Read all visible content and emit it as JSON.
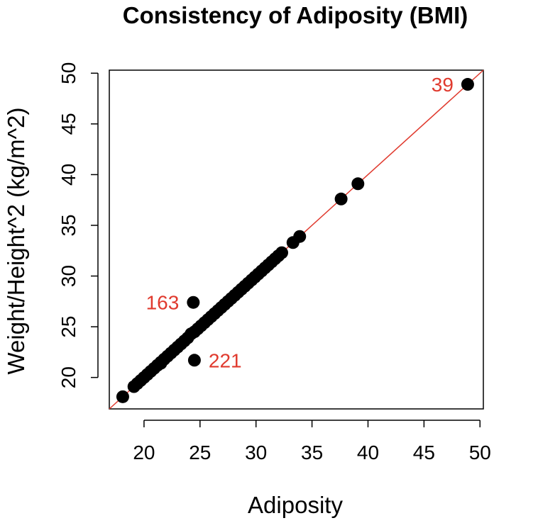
{
  "chart_data": {
    "type": "scatter",
    "title": "Consistency of Adiposity (BMI)",
    "xlabel": "Adiposity",
    "ylabel": "Weight/Height^2 (kg/m^2)",
    "xlim": [
      16.9,
      50.3
    ],
    "ylim": [
      16.9,
      50.3
    ],
    "xticks": [
      20,
      25,
      30,
      35,
      40,
      45,
      50
    ],
    "yticks": [
      20,
      25,
      30,
      35,
      40,
      45,
      50
    ],
    "reference_line": {
      "intercept": 0,
      "slope": 1,
      "color": "#e03a2e"
    },
    "point_color": "#000000",
    "label_color": "#e03a2e",
    "points": [
      [
        18.1,
        18.1
      ],
      [
        19.1,
        19.1
      ],
      [
        19.4,
        19.4
      ],
      [
        19.7,
        19.7
      ],
      [
        20.0,
        20.0
      ],
      [
        20.3,
        20.3
      ],
      [
        20.6,
        20.6
      ],
      [
        20.9,
        20.9
      ],
      [
        21.2,
        21.2
      ],
      [
        21.5,
        21.4
      ],
      [
        21.5,
        21.5
      ],
      [
        21.8,
        21.8
      ],
      [
        22.1,
        22.1
      ],
      [
        22.4,
        22.4
      ],
      [
        22.7,
        22.7
      ],
      [
        23.0,
        23.0
      ],
      [
        23.3,
        23.3
      ],
      [
        23.6,
        23.6
      ],
      [
        23.9,
        23.9
      ],
      [
        24.2,
        24.3
      ],
      [
        24.5,
        24.5
      ],
      [
        24.8,
        24.8
      ],
      [
        25.1,
        25.1
      ],
      [
        25.4,
        25.4
      ],
      [
        25.7,
        25.7
      ],
      [
        26.0,
        26.0
      ],
      [
        26.3,
        26.3
      ],
      [
        26.6,
        26.6
      ],
      [
        26.9,
        26.9
      ],
      [
        27.2,
        27.2
      ],
      [
        27.5,
        27.5
      ],
      [
        27.8,
        27.8
      ],
      [
        28.1,
        28.1
      ],
      [
        28.4,
        28.4
      ],
      [
        28.7,
        28.7
      ],
      [
        29.0,
        29.0
      ],
      [
        29.3,
        29.3
      ],
      [
        29.6,
        29.6
      ],
      [
        29.9,
        29.9
      ],
      [
        30.2,
        30.2
      ],
      [
        30.5,
        30.5
      ],
      [
        30.8,
        30.8
      ],
      [
        31.1,
        31.1
      ],
      [
        31.4,
        31.4
      ],
      [
        31.7,
        31.7
      ],
      [
        32.0,
        32.0
      ],
      [
        32.3,
        32.3
      ],
      [
        33.3,
        33.3
      ],
      [
        33.9,
        33.9
      ],
      [
        37.6,
        37.6
      ],
      [
        39.1,
        39.1
      ],
      [
        48.9,
        48.9
      ],
      [
        24.4,
        27.4
      ],
      [
        24.5,
        21.7
      ]
    ],
    "labels": [
      {
        "text": "39",
        "x": 48.9,
        "y": 48.9,
        "pos": "left"
      },
      {
        "text": "163",
        "x": 24.4,
        "y": 27.4,
        "pos": "left"
      },
      {
        "text": "221",
        "x": 24.5,
        "y": 21.7,
        "pos": "right"
      }
    ]
  }
}
